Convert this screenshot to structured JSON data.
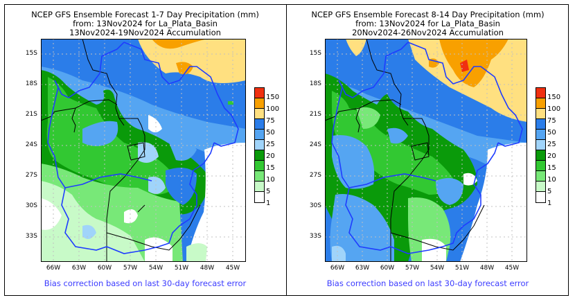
{
  "panels": [
    {
      "title_line1": "NCEP GFS Ensemble Forecast 1-7 Day Precipitation (mm)",
      "title_line2": "from: 13Nov2024   for La_Plata_Basin",
      "title_line3": "13Nov2024-19Nov2024 Accumulation",
      "footer": "Bias correction based on last 30-day forecast error"
    },
    {
      "title_line1": "NCEP GFS Ensemble Forecast 8-14 Day Precipitation (mm)",
      "title_line2": "from: 13Nov2024   for La_Plata_Basin",
      "title_line3": "20Nov2024-26Nov2024 Accumulation",
      "footer": "Bias correction based on last 30-day forecast error"
    }
  ],
  "axes": {
    "lat_ticks": [
      "15S",
      "18S",
      "21S",
      "24S",
      "27S",
      "30S",
      "33S"
    ],
    "lon_ticks": [
      "66W",
      "63W",
      "60W",
      "57W",
      "54W",
      "51W",
      "48W",
      "45W"
    ]
  },
  "legend": {
    "labels": [
      "150",
      "100",
      "75",
      "50",
      "25",
      "20",
      "15",
      "10",
      "5",
      "1"
    ],
    "colors": [
      "#f03010",
      "#f8a000",
      "#ffe080",
      "#2b7de9",
      "#55a5f2",
      "#a0d4fa",
      "#0a9a0a",
      "#32c832",
      "#78e878",
      "#c8fac8",
      "#ffffff"
    ]
  },
  "colors": {
    "basin_outline": "#1e3cff",
    "border_lines": "#000000",
    "footer_text": "#3b3bff"
  }
}
